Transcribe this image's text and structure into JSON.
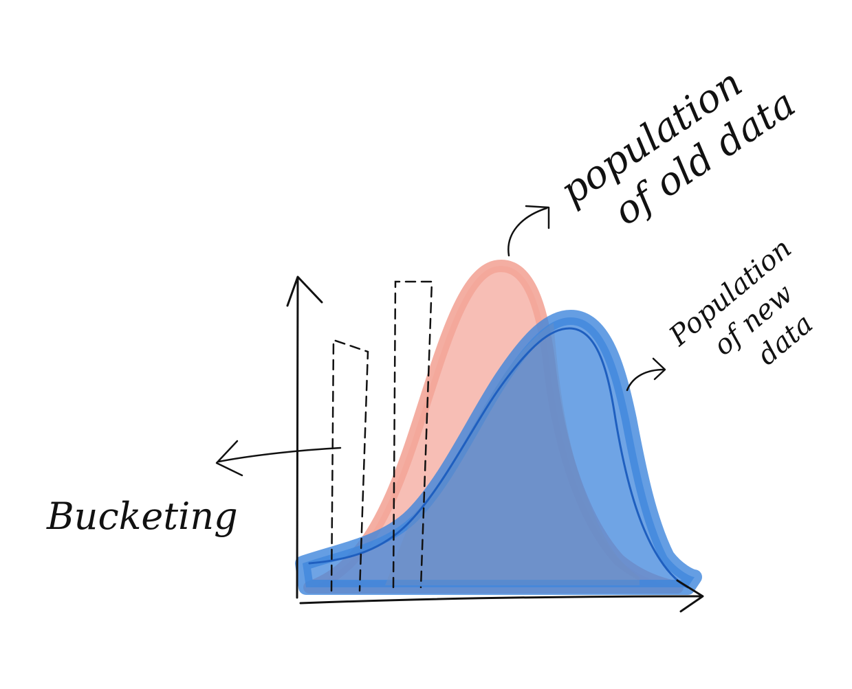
{
  "labels": {
    "old_population": "population of old data",
    "old_population_line1": "population",
    "old_population_line2": "of old data",
    "new_population": "Population of new data",
    "new_population_line1": "Population",
    "new_population_line2": "of new",
    "new_population_line3": "data",
    "bucketing": "Bucketing"
  },
  "colors": {
    "ink": "#111111",
    "old_fill": "#f6b3a8",
    "new_fill": "#3f86dc",
    "new_outline": "#1f5fbf",
    "overlap_fill": "#6e8fc2",
    "background": "#ffffff"
  },
  "icons": {
    "old_arrow": "curved-arrow-icon",
    "new_arrow": "curved-arrow-icon",
    "bucketing_arrow": "left-arrow-icon"
  }
}
